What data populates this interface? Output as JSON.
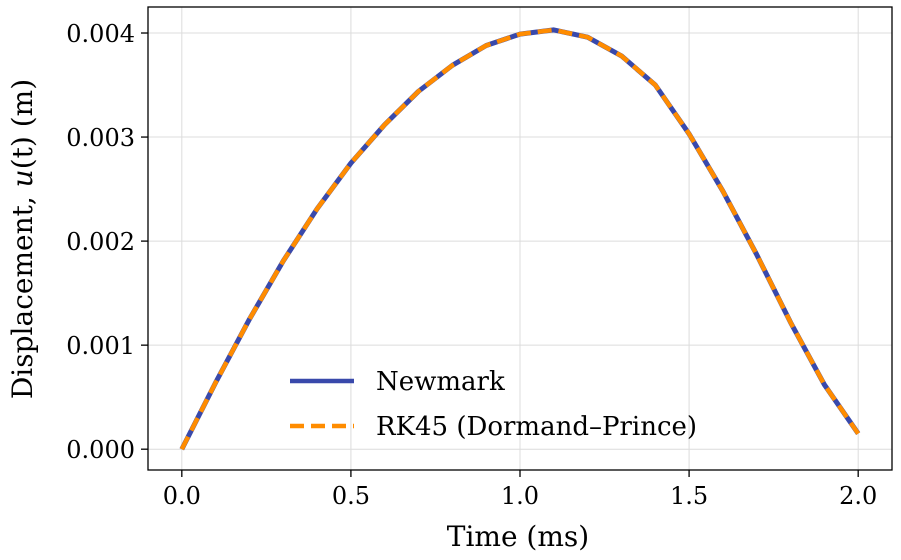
{
  "chart_data": {
    "type": "line",
    "title": "",
    "xlabel": "Time (ms)",
    "ylabel_prefix": "Displacement, ",
    "ylabel_var": "u",
    "ylabel_arg": "(t)",
    "ylabel_suffix": " (m)",
    "xlim": [
      -0.1,
      2.1
    ],
    "ylim": [
      -0.0002,
      0.00425
    ],
    "xticks": [
      0.0,
      0.5,
      1.0,
      1.5,
      2.0
    ],
    "xtick_labels": [
      "0.0",
      "0.5",
      "1.0",
      "1.5",
      "2.0"
    ],
    "yticks": [
      0.0,
      0.001,
      0.002,
      0.003,
      0.004
    ],
    "ytick_labels": [
      "0.000",
      "0.001",
      "0.002",
      "0.003",
      "0.004"
    ],
    "grid": true,
    "legend_position": "lower-center",
    "x": [
      0.0,
      0.1,
      0.2,
      0.3,
      0.4,
      0.5,
      0.6,
      0.7,
      0.8,
      0.9,
      1.0,
      1.1,
      1.2,
      1.3,
      1.4,
      1.5,
      1.6,
      1.7,
      1.8,
      1.9,
      2.0
    ],
    "series": [
      {
        "name": "Newmark",
        "color": "#3949ab",
        "style": "solid",
        "values": [
          0.0,
          0.00064,
          0.00125,
          0.00181,
          0.00231,
          0.00275,
          0.00312,
          0.00344,
          0.00369,
          0.00388,
          0.00399,
          0.00403,
          0.00396,
          0.00378,
          0.0035,
          0.00303,
          0.00248,
          0.00187,
          0.00122,
          0.00062,
          0.00015
        ]
      },
      {
        "name": "RK45 (Dormand–Prince)",
        "color": "#ff8c00",
        "style": "dashed",
        "values": [
          0.0,
          0.00064,
          0.00125,
          0.00181,
          0.00231,
          0.00275,
          0.00312,
          0.00344,
          0.00369,
          0.00388,
          0.00399,
          0.00403,
          0.00396,
          0.00378,
          0.0035,
          0.00303,
          0.00248,
          0.00187,
          0.00122,
          0.00062,
          0.00015
        ]
      }
    ]
  }
}
